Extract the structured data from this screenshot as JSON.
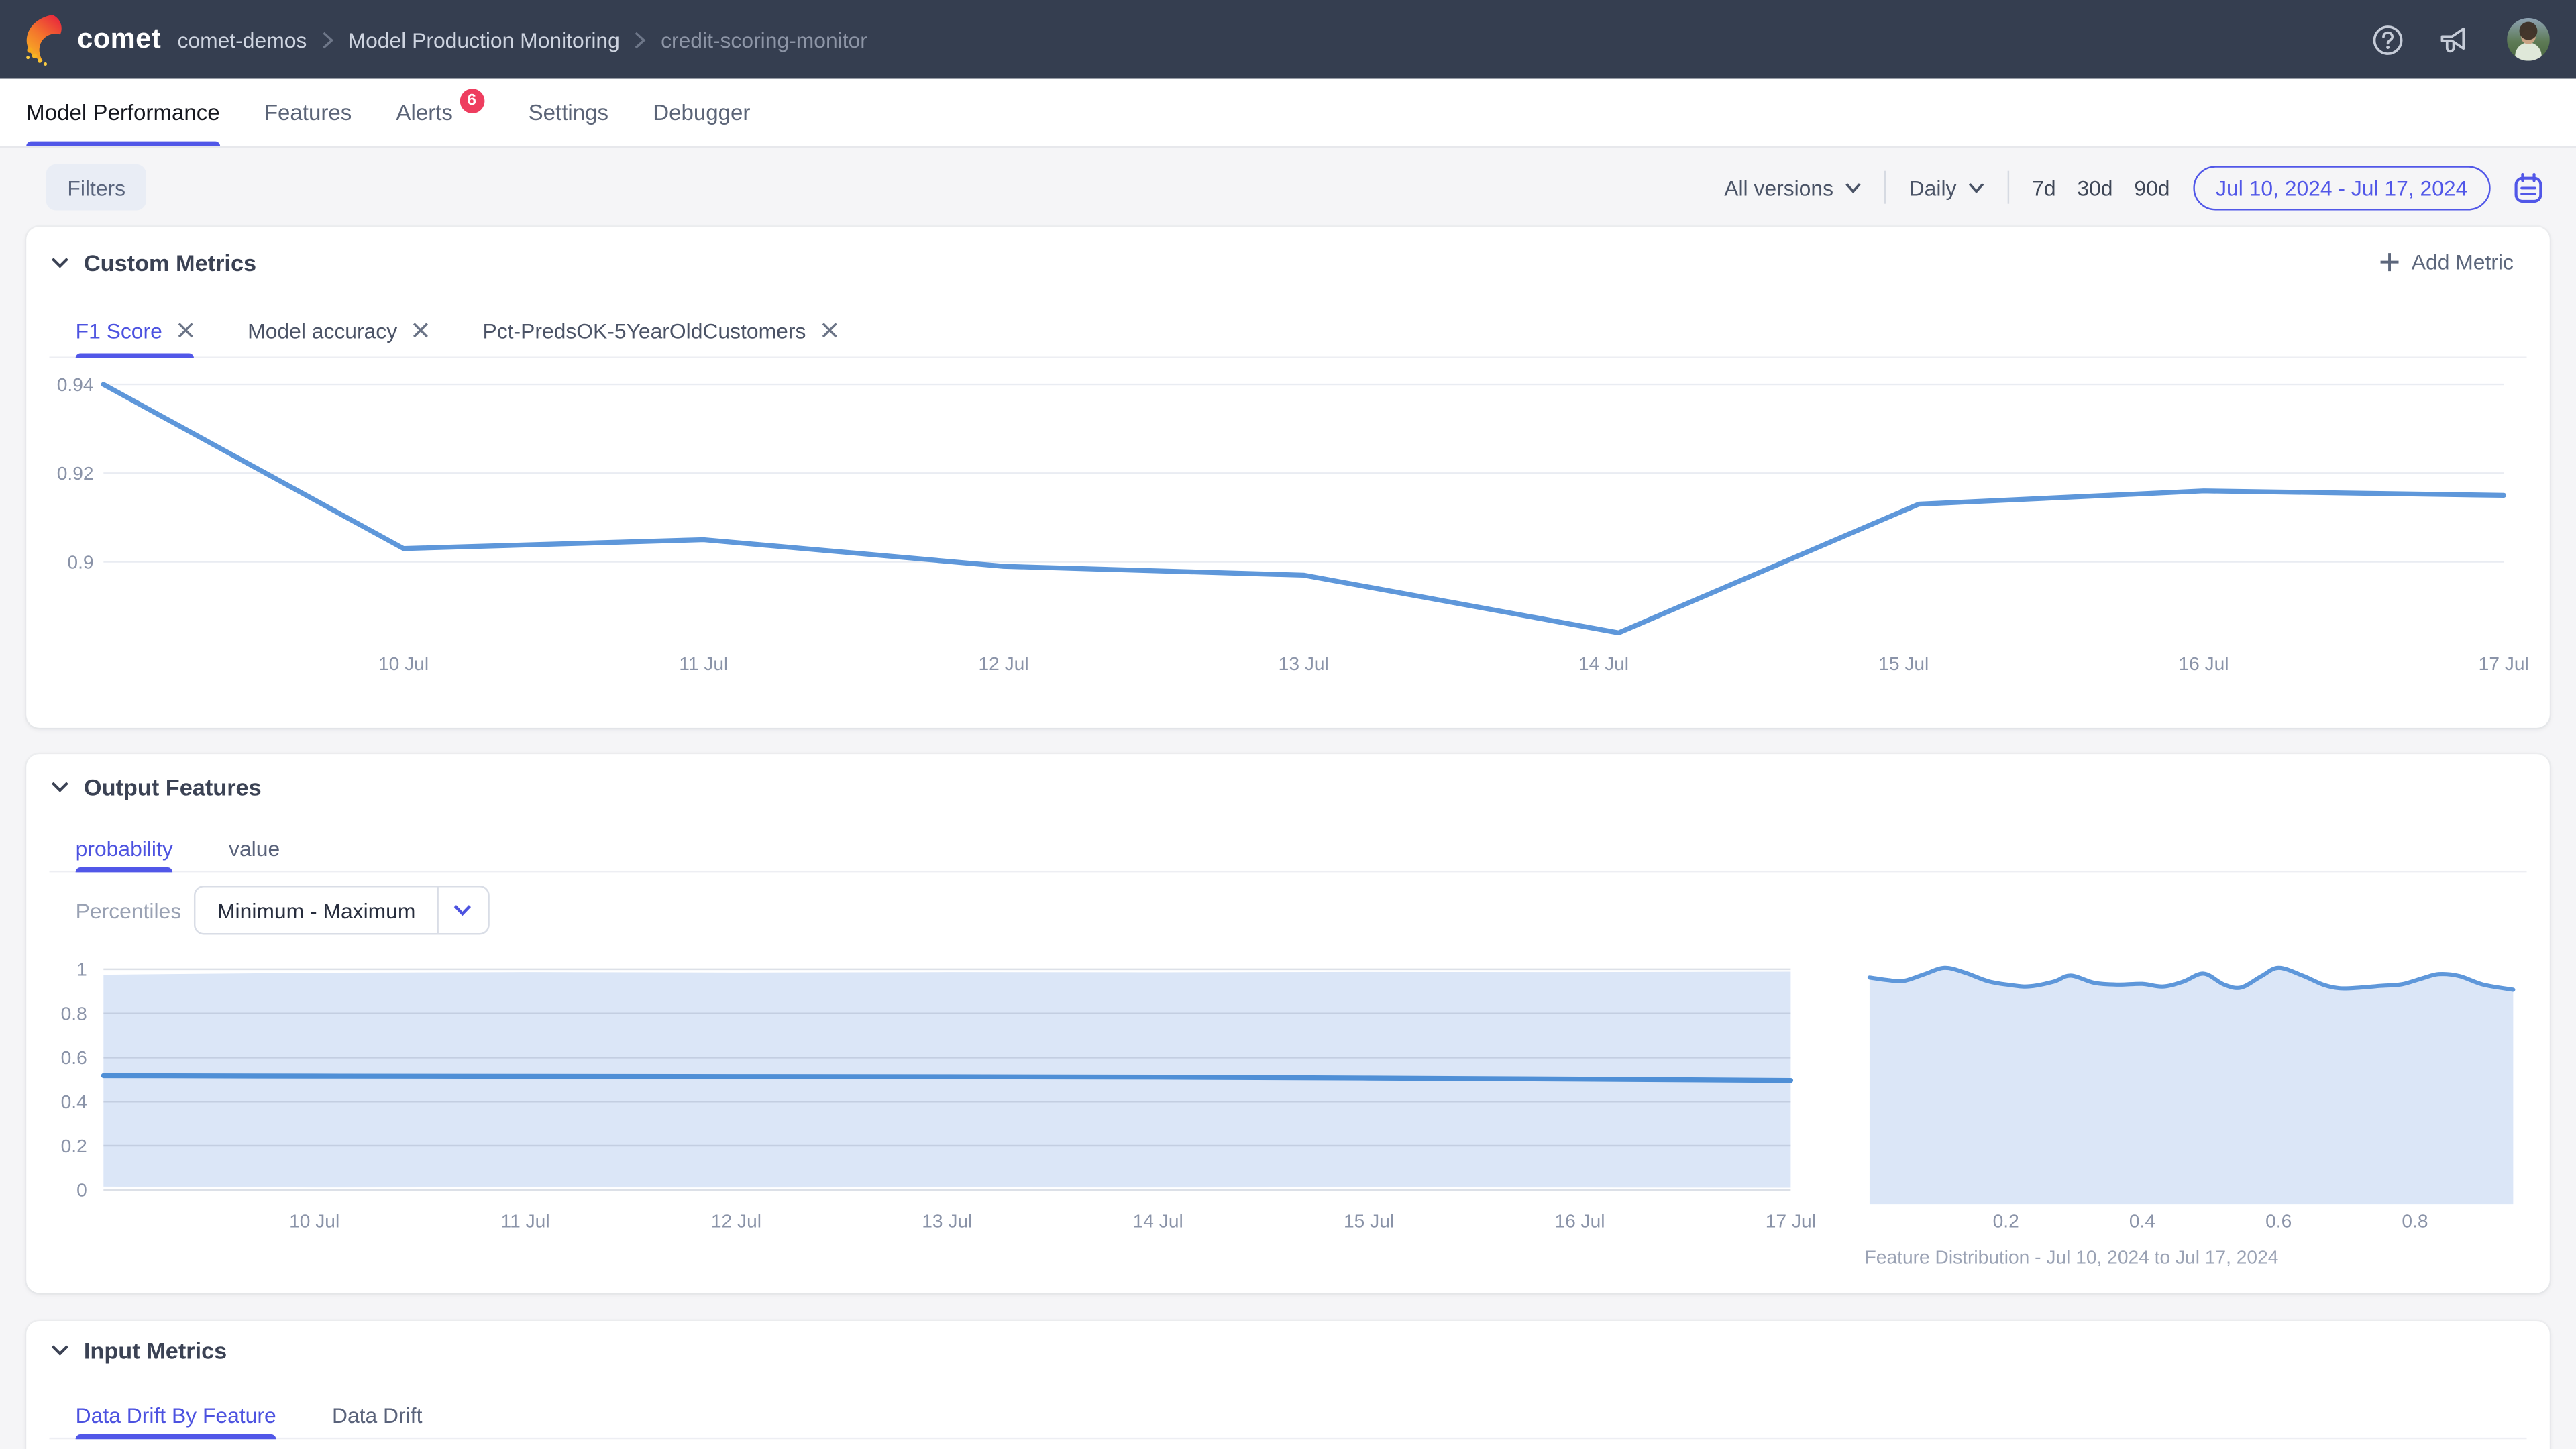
{
  "navbar": {
    "logo_text": "comet",
    "breadcrumb": [
      "comet-demos",
      "Model Production Monitoring",
      "credit-scoring-monitor"
    ]
  },
  "tabs": {
    "items": [
      {
        "label": "Model Performance",
        "active": true
      },
      {
        "label": "Features",
        "active": false
      },
      {
        "label": "Alerts",
        "active": false,
        "badge": "6"
      },
      {
        "label": "Settings",
        "active": false
      },
      {
        "label": "Debugger",
        "active": false
      }
    ]
  },
  "filter_bar": {
    "filters_label": "Filters",
    "versions_label": "All versions",
    "granularity_label": "Daily",
    "ranges": [
      "7d",
      "30d",
      "90d"
    ],
    "date_range": "Jul 10, 2024 - Jul 17, 2024"
  },
  "custom_metrics": {
    "title": "Custom Metrics",
    "add_label": "Add Metric",
    "metric_tabs": [
      {
        "label": "F1 Score",
        "active": true
      },
      {
        "label": "Model accuracy",
        "active": false
      },
      {
        "label": "Pct-PredsOK-5YearOldCustomers",
        "active": false
      }
    ]
  },
  "output_features": {
    "title": "Output Features",
    "tabs": [
      {
        "label": "probability",
        "active": true
      },
      {
        "label": "value",
        "active": false
      }
    ],
    "percentiles_label": "Percentiles",
    "percentiles_value": "Minimum - Maximum",
    "distribution_caption": "Feature Distribution - Jul 10, 2024 to Jul 17, 2024"
  },
  "input_metrics": {
    "title": "Input Metrics",
    "tabs": [
      {
        "label": "Data Drift By Feature",
        "active": true
      },
      {
        "label": "Data Drift",
        "active": false
      }
    ]
  },
  "colors": {
    "accent": "#5157e8",
    "navbar_bg": "#353e50",
    "badge_red": "#ee3d5f",
    "chart_line": "#5e97da",
    "band_fill": "#dbe6f7",
    "gridline": "#e9ecf2",
    "axis_label": "#8a93a8"
  },
  "chart_data": [
    {
      "type": "line",
      "title": "F1 Score",
      "x_labels": [
        "10 Jul",
        "11 Jul",
        "12 Jul",
        "13 Jul",
        "14 Jul",
        "15 Jul",
        "16 Jul",
        "17 Jul"
      ],
      "x": [
        0,
        1,
        2,
        3,
        4,
        5.05,
        6.05,
        7,
        8
      ],
      "values": [
        0.94,
        0.903,
        0.905,
        0.899,
        0.897,
        0.884,
        0.913,
        0.916,
        0.915
      ],
      "y_ticks": [
        0.94,
        0.92,
        0.9
      ],
      "ylim": [
        0.873,
        0.945
      ],
      "xlabel": "",
      "ylabel": "",
      "grid": true,
      "line_color": "#5e97da"
    },
    {
      "type": "area-band",
      "title": "probability percentiles (Minimum - Maximum)",
      "x_labels": [
        "10 Jul",
        "11 Jul",
        "12 Jul",
        "13 Jul",
        "14 Jul",
        "15 Jul",
        "16 Jul",
        "17 Jul"
      ],
      "x": [
        0,
        1,
        2,
        3,
        4,
        5,
        6,
        7,
        8
      ],
      "band_top": [
        0.975,
        0.984,
        0.987,
        0.985,
        0.987,
        0.986,
        0.988,
        0.987,
        0.989
      ],
      "band_bottom": [
        0.015,
        0.011,
        0.012,
        0.011,
        0.012,
        0.011,
        0.012,
        0.011,
        0.01
      ],
      "median": [
        0.518,
        0.516,
        0.515,
        0.514,
        0.513,
        0.511,
        0.507,
        0.502,
        0.496
      ],
      "y_ticks": [
        1,
        0.8,
        0.6,
        0.4,
        0.2,
        0
      ],
      "ylim": [
        0,
        1
      ],
      "grid": true,
      "line_color": "#4f8fd6",
      "fill_color": "#dbe6f7"
    },
    {
      "type": "area",
      "title": "Feature Distribution - Jul 10, 2024 to Jul 17, 2024",
      "x_ticks": [
        0.2,
        0.4,
        0.6,
        0.8
      ],
      "xlim": [
        0,
        0.944
      ],
      "x": [
        0.0,
        0.025,
        0.05,
        0.08,
        0.11,
        0.14,
        0.175,
        0.21,
        0.235,
        0.27,
        0.295,
        0.33,
        0.365,
        0.4,
        0.43,
        0.46,
        0.49,
        0.52,
        0.545,
        0.575,
        0.6,
        0.635,
        0.665,
        0.69,
        0.72,
        0.75,
        0.78,
        0.81,
        0.835,
        0.865,
        0.9,
        0.944
      ],
      "density": [
        0.932,
        0.922,
        0.918,
        0.945,
        0.972,
        0.952,
        0.916,
        0.9,
        0.896,
        0.915,
        0.94,
        0.91,
        0.903,
        0.906,
        0.895,
        0.915,
        0.948,
        0.903,
        0.891,
        0.938,
        0.972,
        0.94,
        0.903,
        0.888,
        0.891,
        0.898,
        0.904,
        0.928,
        0.946,
        0.938,
        0.903,
        0.882
      ],
      "line_color": "#5e97da",
      "fill_color": "#dbe6f7"
    }
  ]
}
